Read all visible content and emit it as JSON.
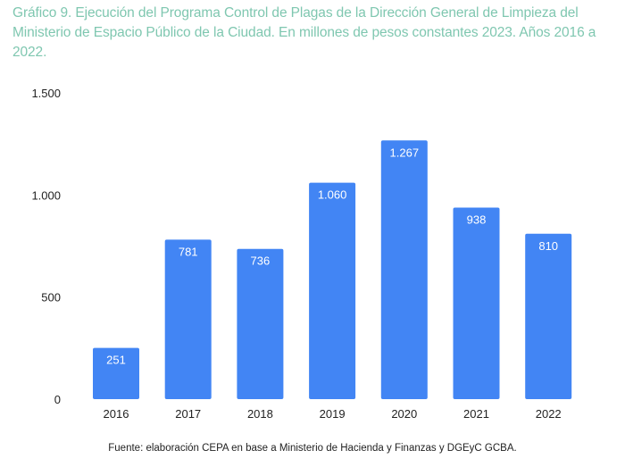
{
  "title": "Gráfico 9. Ejecución del Programa Control de Plagas de la Dirección General de Limpieza del Ministerio de Espacio Público de la Ciudad. En millones de pesos constantes 2023.  Años 2016 a 2022.",
  "source": "Fuente: elaboración CEPA en base a Ministerio de Hacienda y Finanzas y DGEyC GCBA.",
  "colors": {
    "bar": "#4285f4",
    "title": "#7fc7b0"
  },
  "chart_data": {
    "type": "bar",
    "title": "Gráfico 9. Ejecución del Programa Control de Plagas de la Dirección General de Limpieza del Ministerio de Espacio Público de la Ciudad. En millones de pesos constantes 2023.  Años 2016 a 2022.",
    "xlabel": "",
    "ylabel": "",
    "categories": [
      "2016",
      "2017",
      "2018",
      "2019",
      "2020",
      "2021",
      "2022"
    ],
    "values": [
      251,
      781,
      736,
      1060,
      1267,
      938,
      810
    ],
    "data_labels": [
      "251",
      "781",
      "736",
      "1.060",
      "1.267",
      "938",
      "810"
    ],
    "ylim": [
      0,
      1500
    ],
    "yticks": [
      0,
      500,
      1000,
      1500
    ],
    "ytick_labels": [
      "0",
      "500",
      "1.000",
      "1.500"
    ],
    "grid": false,
    "legend": "none"
  }
}
